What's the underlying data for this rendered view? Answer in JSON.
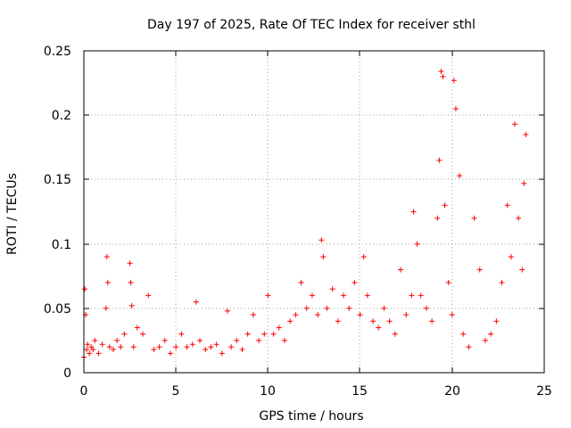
{
  "chart_data": {
    "type": "scatter",
    "title": "Day 197 of 2025, Rate Of TEC Index for receiver sthl",
    "xlabel": "GPS time / hours",
    "ylabel": "ROTI / TECUs",
    "xlim": [
      0,
      25
    ],
    "ylim": [
      0,
      0.25
    ],
    "xticks": [
      0,
      5,
      10,
      15,
      20,
      25
    ],
    "xtick_labels": [
      "0",
      "5",
      "10",
      "15",
      "20",
      "25"
    ],
    "yticks": [
      0,
      0.05,
      0.1,
      0.15,
      0.2,
      0.25
    ],
    "ytick_labels": [
      "0",
      "0.05",
      "0.1",
      "0.15",
      "0.2",
      "0.25"
    ],
    "grid": true,
    "marker": "+",
    "series": [
      {
        "name": "ROTI",
        "color": "#ff0000",
        "x": [
          0.0,
          0.05,
          0.1,
          0.15,
          0.2,
          0.3,
          0.4,
          0.5,
          0.6,
          0.8,
          1.0,
          1.2,
          1.25,
          1.3,
          1.4,
          1.6,
          1.8,
          2.0,
          2.2,
          2.5,
          2.55,
          2.6,
          2.7,
          2.9,
          3.2,
          3.5,
          3.8,
          4.1,
          4.4,
          4.7,
          5.0,
          5.3,
          5.6,
          5.9,
          6.1,
          6.3,
          6.6,
          6.9,
          7.2,
          7.5,
          7.8,
          8.0,
          8.3,
          8.6,
          8.9,
          9.2,
          9.5,
          9.8,
          10.0,
          10.3,
          10.6,
          10.9,
          11.2,
          11.5,
          11.8,
          12.1,
          12.4,
          12.7,
          12.9,
          13.0,
          13.2,
          13.5,
          13.8,
          14.1,
          14.4,
          14.7,
          15.0,
          15.2,
          15.4,
          15.7,
          16.0,
          16.3,
          16.6,
          16.9,
          17.2,
          17.5,
          17.8,
          17.9,
          18.1,
          18.3,
          18.6,
          18.9,
          19.2,
          19.3,
          19.4,
          19.5,
          19.6,
          19.8,
          20.0,
          20.1,
          20.2,
          20.4,
          20.6,
          20.9,
          21.2,
          21.5,
          21.8,
          22.1,
          22.4,
          22.7,
          23.0,
          23.2,
          23.4,
          23.6,
          23.8,
          23.9,
          24.0
        ],
        "y": [
          0.012,
          0.065,
          0.045,
          0.018,
          0.022,
          0.015,
          0.02,
          0.018,
          0.025,
          0.015,
          0.022,
          0.05,
          0.09,
          0.07,
          0.02,
          0.018,
          0.025,
          0.02,
          0.03,
          0.085,
          0.07,
          0.052,
          0.02,
          0.035,
          0.03,
          0.06,
          0.018,
          0.02,
          0.025,
          0.015,
          0.02,
          0.03,
          0.02,
          0.022,
          0.055,
          0.025,
          0.018,
          0.02,
          0.022,
          0.015,
          0.048,
          0.02,
          0.025,
          0.018,
          0.03,
          0.045,
          0.025,
          0.03,
          0.06,
          0.03,
          0.035,
          0.025,
          0.04,
          0.045,
          0.07,
          0.05,
          0.06,
          0.045,
          0.103,
          0.09,
          0.05,
          0.065,
          0.04,
          0.06,
          0.05,
          0.07,
          0.045,
          0.09,
          0.06,
          0.04,
          0.035,
          0.05,
          0.04,
          0.03,
          0.08,
          0.045,
          0.06,
          0.125,
          0.1,
          0.06,
          0.05,
          0.04,
          0.12,
          0.165,
          0.234,
          0.23,
          0.13,
          0.07,
          0.045,
          0.227,
          0.205,
          0.153,
          0.03,
          0.02,
          0.12,
          0.08,
          0.025,
          0.03,
          0.04,
          0.07,
          0.13,
          0.09,
          0.193,
          0.12,
          0.08,
          0.147,
          0.185
        ]
      }
    ]
  }
}
